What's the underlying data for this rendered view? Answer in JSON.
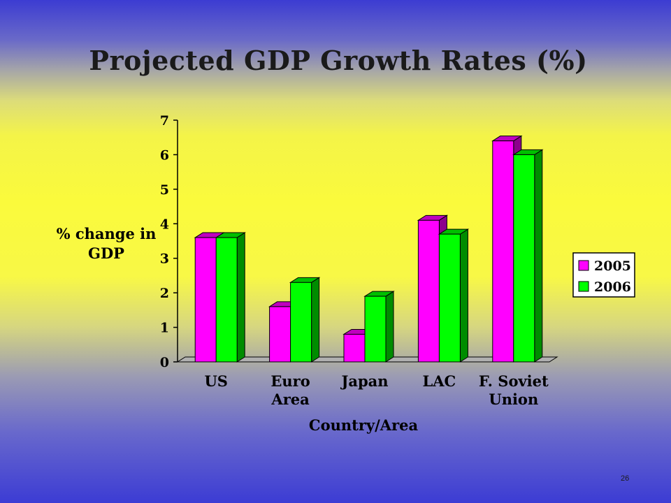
{
  "slide": {
    "title": "Projected GDP Growth Rates (%)",
    "page_number": "26"
  },
  "colors": {
    "series_2005": "#ff00ff",
    "series_2006": "#00ff00",
    "axis": "#000000"
  },
  "chart_data": {
    "type": "bar",
    "title": "Projected GDP Growth Rates (%)",
    "categories": [
      [
        "US"
      ],
      [
        "Euro",
        "Area"
      ],
      [
        "Japan"
      ],
      [
        "LAC"
      ],
      [
        "F. Soviet",
        "Union"
      ]
    ],
    "series": [
      {
        "name": "2005",
        "values": [
          3.6,
          1.6,
          0.8,
          4.1,
          6.4
        ]
      },
      {
        "name": "2006",
        "values": [
          3.6,
          2.3,
          1.9,
          3.7,
          6.0
        ]
      }
    ],
    "xlabel": "Country/Area",
    "ylabel": [
      "% change in",
      "GDP"
    ],
    "ylim": [
      0,
      7
    ],
    "yticks": [
      0,
      1,
      2,
      3,
      4,
      5,
      6,
      7
    ],
    "grid": false,
    "legend_position": "right",
    "style": "3d-column"
  }
}
